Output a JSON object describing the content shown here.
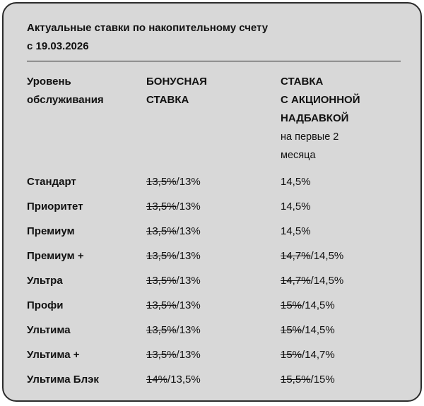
{
  "card": {
    "title_line1": "Актуальные ставки по накопительному счету",
    "title_line2": "с 19.03.2026"
  },
  "columns": {
    "level_line1": "Уровень",
    "level_line2": "обслуживания",
    "bonus_line1": "БОНУСНАЯ",
    "bonus_line2": "СТАВКА",
    "promo_line1": "СТАВКА",
    "promo_line2": "С АКЦИОННОЙ",
    "promo_line3": "НАДБАВКОЙ",
    "promo_note_line1": "на первые 2",
    "promo_note_line2": "месяца"
  },
  "rows": [
    {
      "level": "Стандарт",
      "bonus_old": "13,5%",
      "bonus_new": "/13%",
      "promo_old": "",
      "promo_new": "14,5%"
    },
    {
      "level": "Приоритет",
      "bonus_old": "13,5%",
      "bonus_new": "/13%",
      "promo_old": "",
      "promo_new": "14,5%"
    },
    {
      "level": "Премиум",
      "bonus_old": "13,5%",
      "bonus_new": "/13%",
      "promo_old": "",
      "promo_new": "14,5%"
    },
    {
      "level": "Премиум +",
      "bonus_old": "13,5%",
      "bonus_new": "/13%",
      "promo_old": "14,7%",
      "promo_new": "/14,5%"
    },
    {
      "level": "Ультра",
      "bonus_old": "13,5%",
      "bonus_new": "/13%",
      "promo_old": "14,7%",
      "promo_new": "/14,5%"
    },
    {
      "level": "Профи",
      "bonus_old": "13,5%",
      "bonus_new": "/13%",
      "promo_old": "15%",
      "promo_new": "/14,5%"
    },
    {
      "level": "Ультима",
      "bonus_old": "13,5%",
      "bonus_new": "/13%",
      "promo_old": "15%",
      "promo_new": "/14,5%"
    },
    {
      "level": "Ультима +",
      "bonus_old": "13,5%",
      "bonus_new": "/13%",
      "promo_old": "15%",
      "promo_new": "/14,7%"
    },
    {
      "level": "Ультима Блэк",
      "bonus_old": "14%",
      "bonus_new": "/13,5%",
      "promo_old": "15,5%",
      "promo_new": "/15%"
    }
  ],
  "colors": {
    "card_background": "#d8d8d8",
    "card_border": "#2b2b2b",
    "text": "#111111"
  },
  "chart_data": {
    "type": "table",
    "title": "Актуальные ставки по накопительному счету с 19.03.2026",
    "columns": [
      "Уровень обслуживания",
      "БОНУСНАЯ СТАВКА",
      "СТАВКА С АКЦИОННОЙ НАДБАВКОЙ (на первые 2 месяца)"
    ],
    "rows": [
      [
        "Стандарт",
        "13,5% (зачеркнуто) / 13%",
        "14,5%"
      ],
      [
        "Приоритет",
        "13,5% (зачеркнуто) / 13%",
        "14,5%"
      ],
      [
        "Премиум",
        "13,5% (зачеркнуто) / 13%",
        "14,5%"
      ],
      [
        "Премиум +",
        "13,5% (зачеркнуто) / 13%",
        "14,7% (зачеркнуто) / 14,5%"
      ],
      [
        "Ультра",
        "13,5% (зачеркнуто) / 13%",
        "14,7% (зачеркнуто) / 14,5%"
      ],
      [
        "Профи",
        "13,5% (зачеркнуто) / 13%",
        "15% (зачеркнуто) / 14,5%"
      ],
      [
        "Ультима",
        "13,5% (зачеркнуто) / 13%",
        "15% (зачеркнуто) / 14,5%"
      ],
      [
        "Ультима +",
        "13,5% (зачеркнуто) / 13%",
        "15% (зачеркнуто) / 14,7%"
      ],
      [
        "Ультима Блэк",
        "14% (зачеркнуто) / 13,5%",
        "15,5% (зачеркнуто) / 15%"
      ]
    ]
  }
}
